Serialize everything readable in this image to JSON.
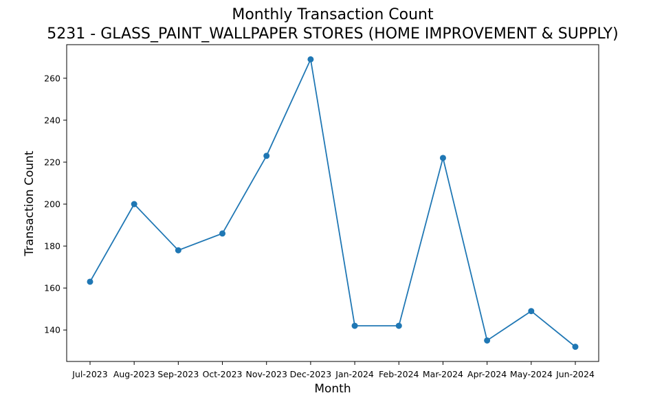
{
  "chart_data": {
    "type": "line",
    "title": "Monthly Transaction Count",
    "subtitle": "5231 - GLASS_PAINT_WALLPAPER STORES (HOME IMPROVEMENT & SUPPLY)",
    "xlabel": "Month",
    "ylabel": "Transaction Count",
    "categories": [
      "Jul-2023",
      "Aug-2023",
      "Sep-2023",
      "Oct-2023",
      "Nov-2023",
      "Dec-2023",
      "Jan-2024",
      "Feb-2024",
      "Mar-2024",
      "Apr-2024",
      "May-2024",
      "Jun-2024"
    ],
    "series": [
      {
        "values": [
          163,
          200,
          178,
          186,
          223,
          269,
          142,
          142,
          222,
          135,
          149,
          132
        ]
      }
    ],
    "ylim": [
      125,
      276
    ],
    "yticks": [
      140,
      160,
      180,
      200,
      220,
      240,
      260
    ],
    "grid": false,
    "legend": "none",
    "color": "#1f77b4"
  }
}
